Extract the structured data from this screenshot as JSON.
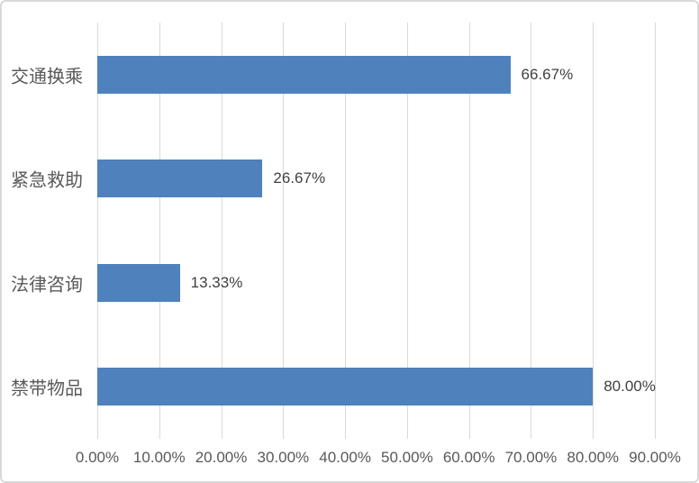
{
  "chart_data": {
    "type": "bar",
    "orientation": "horizontal",
    "title": "",
    "xlabel": "",
    "ylabel": "",
    "categories": [
      "交通换乘",
      "紧急救助",
      "法律咨询",
      "禁带物品"
    ],
    "values": [
      66.67,
      26.67,
      13.33,
      80.0
    ],
    "value_labels": [
      "66.67%",
      "26.67%",
      "13.33%",
      "80.00%"
    ],
    "xlim": [
      0,
      90
    ],
    "x_tick_values": [
      0,
      10,
      20,
      30,
      40,
      50,
      60,
      70,
      80,
      90
    ],
    "x_tick_labels": [
      "0.00%",
      "10.00%",
      "20.00%",
      "30.00%",
      "40.00%",
      "50.00%",
      "60.00%",
      "70.00%",
      "80.00%",
      "90.00%"
    ],
    "grid": "vertical-only",
    "legend": "none",
    "series_color": "#4f81bd"
  },
  "colors": {
    "bar": "#4f81bd",
    "gridline": "#d9d9d9",
    "chart_border": "#d9d9d9",
    "axis_text": "#595959",
    "category_text": "#595959",
    "data_label_text": "#404040",
    "background": "#ffffff"
  }
}
